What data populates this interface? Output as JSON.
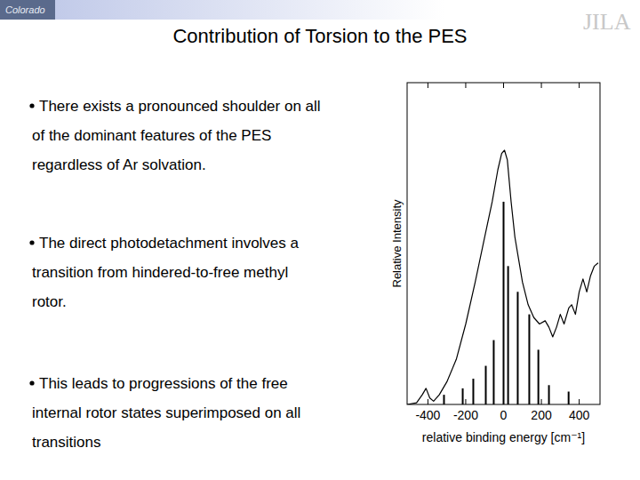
{
  "header": {
    "left_logo": "Colorado",
    "right_logo": "JILA"
  },
  "title": "Contribution of Torsion to the PES",
  "bullets": [
    [
      "There exists a pronounced shoulder on all",
      "of the dominant features of the PES",
      "regardless of Ar solvation."
    ],
    [
      "The direct photodetachment involves a",
      "transition from hindered-to-free methyl",
      "rotor."
    ],
    [
      "This leads to progressions of the free",
      "internal rotor states superimposed on all",
      "transitions"
    ]
  ],
  "chart_data": {
    "type": "line",
    "x_label": "relative binding energy [cm⁻¹]",
    "y_label": "Relative Intensity",
    "xlim": [
      -510,
      510
    ],
    "xticks": [
      -400,
      -200,
      0,
      200,
      400
    ],
    "ylim": [
      0,
      1
    ],
    "tick_labels": "x",
    "grid": false,
    "series": [
      {
        "type": "line",
        "color": "#000000",
        "x": [
          -510,
          -460,
          -430,
          -410,
          -390,
          -370,
          -340,
          -300,
          -250,
          -200,
          -150,
          -100,
          -60,
          -30,
          -10,
          5,
          20,
          40,
          60,
          80,
          100,
          130,
          160,
          190,
          220,
          240,
          260,
          280,
          300,
          320,
          345,
          360,
          380,
          400,
          420,
          440,
          460,
          480,
          500
        ],
        "values": [
          0,
          0.005,
          0.03,
          0.05,
          0.02,
          0.01,
          0.03,
          0.07,
          0.14,
          0.25,
          0.38,
          0.52,
          0.63,
          0.73,
          0.78,
          0.79,
          0.76,
          0.63,
          0.52,
          0.45,
          0.38,
          0.31,
          0.27,
          0.25,
          0.26,
          0.24,
          0.21,
          0.24,
          0.28,
          0.25,
          0.3,
          0.31,
          0.28,
          0.35,
          0.39,
          0.35,
          0.4,
          0.43,
          0.44
        ]
      },
      {
        "type": "bar",
        "color": "#000000",
        "x": [
          -315,
          -216,
          -160,
          -94,
          -52,
          0,
          24,
          75,
          136,
          184,
          240,
          344
        ],
        "values": [
          0.03,
          0.05,
          0.08,
          0.12,
          0.2,
          0.63,
          0.43,
          0.35,
          0.28,
          0.17,
          0.06,
          0.04
        ]
      }
    ]
  }
}
